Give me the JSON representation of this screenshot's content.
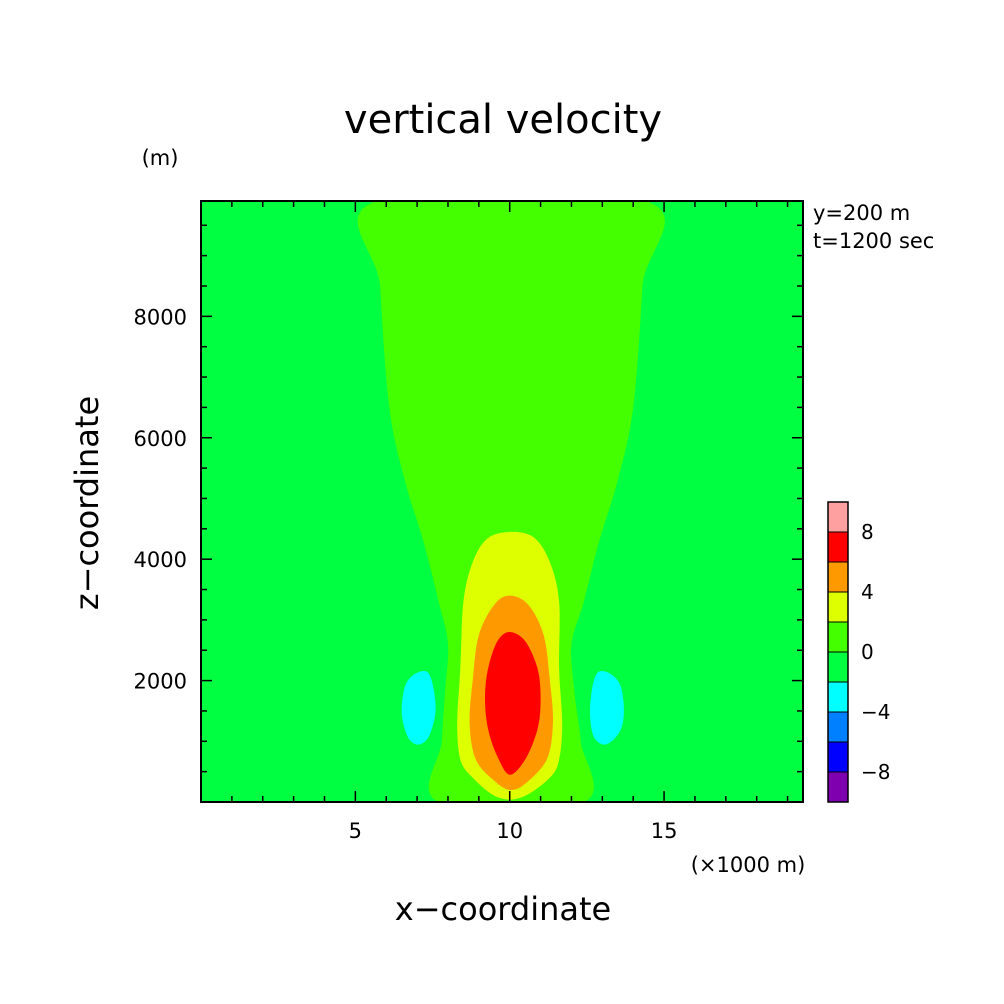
{
  "chart_data": {
    "type": "heatmap",
    "title": "vertical velocity",
    "xlabel": "x−coordinate",
    "ylabel": "z−coordinate",
    "x_unit": "(×1000 m)",
    "y_unit": "(m)",
    "annotations": [
      "y=200 m",
      "t=1200 sec"
    ],
    "xlim": [
      0,
      19.5
    ],
    "ylim": [
      0,
      9900
    ],
    "x_ticks": [
      5,
      10,
      15
    ],
    "y_ticks": [
      2000,
      4000,
      6000,
      8000
    ],
    "grid": false,
    "legend": "colorbar-right",
    "levels": [
      {
        "range": [
          -10,
          -8
        ],
        "color": "#7F00AF"
      },
      {
        "range": [
          -8,
          -6
        ],
        "color": "#0000FF"
      },
      {
        "range": [
          -6,
          -4
        ],
        "color": "#0080FF"
      },
      {
        "range": [
          -4,
          -2
        ],
        "color": "#00FFFF"
      },
      {
        "range": [
          -2,
          0
        ],
        "color": "#00FF40"
      },
      {
        "range": [
          0,
          2
        ],
        "color": "#44FF00"
      },
      {
        "range": [
          2,
          4
        ],
        "color": "#DDFF00"
      },
      {
        "range": [
          4,
          6
        ],
        "color": "#FF9900"
      },
      {
        "range": [
          6,
          8
        ],
        "color": "#FF0000"
      },
      {
        "range": [
          8,
          10
        ],
        "color": "#FFA0A0"
      }
    ],
    "colorbar_labels": [
      "−8",
      "−4",
      "0",
      "4",
      "8"
    ],
    "colorbar_label_values": [
      -8,
      -4,
      0,
      4,
      8
    ],
    "regions": [
      {
        "name": "background",
        "level": -2,
        "points": [
          [
            0,
            0
          ],
          [
            19.5,
            0
          ],
          [
            19.5,
            9900
          ],
          [
            0,
            9900
          ]
        ]
      },
      {
        "name": "updraft-plume",
        "level": 0,
        "points": [
          [
            5.7,
            9900
          ],
          [
            5.8,
            8500
          ],
          [
            6.1,
            6500
          ],
          [
            6.6,
            5300
          ],
          [
            7.2,
            4300
          ],
          [
            7.7,
            3300
          ],
          [
            8.0,
            2600
          ],
          [
            7.9,
            1800
          ],
          [
            7.8,
            1000
          ],
          [
            7.7,
            0
          ],
          [
            12.4,
            0
          ],
          [
            12.3,
            1000
          ],
          [
            12.1,
            1800
          ],
          [
            12.0,
            2600
          ],
          [
            12.4,
            3300
          ],
          [
            12.9,
            4300
          ],
          [
            13.5,
            5300
          ],
          [
            14.0,
            6500
          ],
          [
            14.3,
            8500
          ],
          [
            14.4,
            9900
          ]
        ]
      },
      {
        "name": "core-yellow",
        "level": 2,
        "points": [
          [
            10.1,
            4450
          ],
          [
            10.8,
            4350
          ],
          [
            11.3,
            3950
          ],
          [
            11.6,
            3300
          ],
          [
            11.6,
            2200
          ],
          [
            11.7,
            1300
          ],
          [
            11.6,
            700
          ],
          [
            11.3,
            400
          ],
          [
            10.4,
            80
          ],
          [
            9.6,
            80
          ],
          [
            8.8,
            400
          ],
          [
            8.4,
            700
          ],
          [
            8.3,
            1300
          ],
          [
            8.4,
            2200
          ],
          [
            8.5,
            3300
          ],
          [
            8.8,
            3950
          ],
          [
            9.3,
            4350
          ]
        ]
      },
      {
        "name": "core-orange",
        "level": 4,
        "points": [
          [
            10.0,
            3400
          ],
          [
            10.6,
            3250
          ],
          [
            11.1,
            2750
          ],
          [
            11.3,
            2000
          ],
          [
            11.4,
            1300
          ],
          [
            11.2,
            700
          ],
          [
            10.5,
            300
          ],
          [
            10.0,
            200
          ],
          [
            9.5,
            350
          ],
          [
            8.9,
            700
          ],
          [
            8.7,
            1300
          ],
          [
            8.8,
            2000
          ],
          [
            9.0,
            2750
          ],
          [
            9.5,
            3250
          ]
        ]
      },
      {
        "name": "core-red",
        "level": 6,
        "points": [
          [
            10.0,
            2800
          ],
          [
            10.5,
            2650
          ],
          [
            10.9,
            2200
          ],
          [
            11.0,
            1700
          ],
          [
            10.9,
            1200
          ],
          [
            10.5,
            700
          ],
          [
            10.0,
            450
          ],
          [
            9.6,
            750
          ],
          [
            9.3,
            1200
          ],
          [
            9.2,
            1700
          ],
          [
            9.3,
            2200
          ],
          [
            9.6,
            2650
          ]
        ]
      },
      {
        "name": "downdraft-left",
        "level": -4,
        "points": [
          [
            6.6,
            1900
          ],
          [
            6.9,
            2100
          ],
          [
            7.3,
            2150
          ],
          [
            7.5,
            1950
          ],
          [
            7.6,
            1500
          ],
          [
            7.4,
            1100
          ],
          [
            7.1,
            950
          ],
          [
            6.8,
            1000
          ],
          [
            6.6,
            1200
          ],
          [
            6.5,
            1500
          ]
        ]
      },
      {
        "name": "downdraft-right",
        "level": -4,
        "points": [
          [
            12.7,
            1950
          ],
          [
            12.9,
            2150
          ],
          [
            13.3,
            2100
          ],
          [
            13.6,
            1900
          ],
          [
            13.7,
            1500
          ],
          [
            13.6,
            1200
          ],
          [
            13.3,
            1000
          ],
          [
            13.0,
            950
          ],
          [
            12.7,
            1100
          ],
          [
            12.6,
            1500
          ]
        ]
      }
    ]
  }
}
